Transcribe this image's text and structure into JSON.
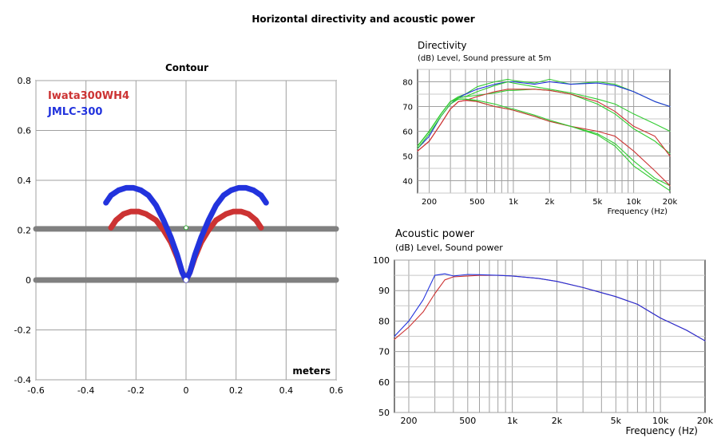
{
  "title": "Horizontal directivity and acoustic power",
  "chart_data": [
    {
      "type": "line",
      "title": "Contour",
      "xlabel": "meters",
      "ylabel": "",
      "xlim": [
        -0.6,
        0.6
      ],
      "ylim": [
        -0.4,
        0.8
      ],
      "xticks": [
        -0.6,
        -0.4,
        -0.2,
        0,
        0.2,
        0.4,
        0.6
      ],
      "xtick_labels": [
        "-0.6",
        "-0.4",
        "-0.2",
        "0",
        "0.2",
        "0.4",
        "0.6"
      ],
      "yticks": [
        -0.4,
        -0.2,
        0,
        0.2,
        0.4,
        0.6,
        0.8
      ],
      "ytick_labels": [
        "-0.4",
        "-0.2",
        "0",
        "0.2",
        "0.4",
        "0.6",
        "0.8"
      ],
      "grid": true,
      "legend": "top-left",
      "series": [
        {
          "name": "Iwata300WH4",
          "color": "#cc3333",
          "x": [
            -0.3,
            -0.28,
            -0.25,
            -0.22,
            -0.19,
            -0.16,
            -0.12,
            -0.09,
            -0.06,
            -0.035,
            -0.015,
            0,
            0.015,
            0.035,
            0.06,
            0.09,
            0.12,
            0.16,
            0.19,
            0.22,
            0.25,
            0.28,
            0.3
          ],
          "y": [
            0.21,
            0.24,
            0.265,
            0.275,
            0.275,
            0.265,
            0.24,
            0.2,
            0.15,
            0.09,
            0.03,
            0,
            0.03,
            0.09,
            0.15,
            0.2,
            0.24,
            0.265,
            0.275,
            0.275,
            0.265,
            0.24,
            0.21
          ]
        },
        {
          "name": "JMLC-300",
          "color": "#2233dd",
          "x": [
            -0.32,
            -0.3,
            -0.27,
            -0.24,
            -0.21,
            -0.18,
            -0.15,
            -0.12,
            -0.09,
            -0.06,
            -0.035,
            -0.015,
            0,
            0.015,
            0.035,
            0.06,
            0.09,
            0.12,
            0.15,
            0.18,
            0.21,
            0.24,
            0.27,
            0.3,
            0.32
          ],
          "y": [
            0.31,
            0.34,
            0.36,
            0.37,
            0.37,
            0.36,
            0.34,
            0.3,
            0.24,
            0.17,
            0.1,
            0.03,
            0,
            0.03,
            0.1,
            0.17,
            0.24,
            0.3,
            0.34,
            0.36,
            0.37,
            0.37,
            0.36,
            0.34,
            0.31
          ]
        },
        {
          "name": "",
          "color": "#808080",
          "x": [
            -0.6,
            0.6
          ],
          "y": [
            0.205,
            0.205
          ]
        },
        {
          "name": "",
          "color": "#808080",
          "x": [
            -0.6,
            0.6
          ],
          "y": [
            0,
            0
          ]
        }
      ]
    },
    {
      "type": "line",
      "title": "Directivity",
      "ylabel": "(dB)  Level, Sound pressure at 5m",
      "xlabel": "Frequency  (Hz)",
      "xscale": "log",
      "xlim": [
        160,
        20000
      ],
      "ylim": [
        35,
        85
      ],
      "xticks": [
        200,
        500,
        1000,
        2000,
        5000,
        10000,
        20000
      ],
      "xtick_labels": [
        "200",
        "500",
        "1k",
        "2k",
        "5k",
        "10k",
        "20k"
      ],
      "yticks": [
        40,
        50,
        60,
        70,
        80
      ],
      "ytick_labels": [
        "40",
        "50",
        "60",
        "70",
        "80"
      ],
      "grid": true,
      "series": [
        {
          "color": "#33cc33",
          "x": [
            160,
            200,
            250,
            300,
            350,
            400,
            500,
            700,
            900,
            1000,
            1500,
            2000,
            3000,
            5000,
            7000,
            10000,
            15000,
            20000
          ],
          "y": [
            54,
            60,
            67,
            72,
            74,
            75,
            78,
            80,
            81,
            80.5,
            79.5,
            81,
            79,
            80,
            79,
            76,
            72,
            70
          ]
        },
        {
          "color": "#2233dd",
          "x": [
            160,
            200,
            250,
            300,
            350,
            400,
            500,
            700,
            900,
            1000,
            1500,
            2000,
            3000,
            5000,
            7000,
            10000,
            15000,
            20000
          ],
          "y": [
            53,
            58,
            66,
            71,
            73.5,
            75,
            77,
            79,
            80,
            80,
            79,
            80,
            79,
            79.5,
            78.5,
            76,
            72,
            70
          ]
        },
        {
          "color": "#33cc33",
          "x": [
            160,
            200,
            250,
            300,
            350,
            400,
            500,
            700,
            900,
            1000,
            1500,
            2000,
            3000,
            5000,
            7000,
            10000,
            15000,
            20000
          ],
          "y": [
            54,
            60,
            67,
            72,
            73.5,
            74,
            76,
            78.5,
            80,
            79.5,
            78,
            77,
            75.5,
            73,
            71,
            67,
            63,
            60
          ]
        },
        {
          "color": "#33cc33",
          "x": [
            160,
            200,
            250,
            300,
            350,
            400,
            500,
            700,
            900,
            1000,
            1500,
            2000,
            3000,
            5000,
            7000,
            10000,
            15000,
            20000
          ],
          "y": [
            54,
            60,
            67,
            72,
            73.5,
            74,
            74.5,
            75.5,
            76.5,
            76.5,
            77,
            76.5,
            75,
            71,
            67,
            61,
            56,
            51
          ]
        },
        {
          "color": "#33cc33",
          "x": [
            160,
            200,
            250,
            300,
            350,
            400,
            500,
            700,
            900,
            1000,
            1500,
            2000,
            3000,
            5000,
            7000,
            10000,
            15000,
            20000
          ],
          "y": [
            54,
            60,
            67,
            72,
            73,
            73,
            72,
            70,
            69,
            68.5,
            66,
            64,
            62,
            59,
            55,
            48,
            41,
            38
          ]
        },
        {
          "color": "#cc3333",
          "x": [
            160,
            200,
            250,
            300,
            350,
            400,
            500,
            700,
            900,
            1000,
            1500,
            2000,
            3000,
            5000,
            7000,
            10000,
            15000,
            20000
          ],
          "y": [
            52,
            56,
            63,
            69,
            72,
            72.5,
            72,
            70,
            69,
            68.5,
            66,
            64,
            62,
            60,
            58,
            52,
            44,
            38
          ]
        },
        {
          "color": "#cc3333",
          "x": [
            160,
            200,
            250,
            300,
            350,
            400,
            500,
            700,
            900,
            1000,
            1500,
            2000,
            3000,
            5000,
            7000,
            10000,
            15000,
            20000
          ],
          "y": [
            52,
            56,
            63,
            69,
            72,
            72.5,
            74,
            76,
            77,
            77,
            77,
            76.5,
            75,
            72,
            68,
            62,
            58,
            50
          ]
        },
        {
          "color": "#33cc33",
          "x": [
            160,
            200,
            250,
            300,
            350,
            400,
            500,
            700,
            900,
            1000,
            1500,
            2000,
            3000,
            5000,
            7000,
            10000,
            15000,
            20000
          ],
          "y": [
            53,
            59,
            66,
            71,
            73,
            73,
            72.5,
            71,
            69.5,
            69,
            66.5,
            64.5,
            62,
            58.5,
            54,
            46,
            40,
            36
          ]
        }
      ]
    },
    {
      "type": "line",
      "title": "Acoustic power",
      "ylabel": "(dB)  Level, Sound power",
      "xlabel": "Frequency  (Hz)",
      "xscale": "log",
      "xlim": [
        160,
        20000
      ],
      "ylim": [
        50,
        100
      ],
      "xticks": [
        200,
        500,
        1000,
        2000,
        5000,
        10000,
        20000
      ],
      "xtick_labels": [
        "200",
        "500",
        "1k",
        "2k",
        "5k",
        "10k",
        "20k"
      ],
      "yticks": [
        50,
        60,
        70,
        80,
        90,
        100
      ],
      "ytick_labels": [
        "50",
        "60",
        "70",
        "80",
        "90",
        "100"
      ],
      "grid": true,
      "series": [
        {
          "color": "#cc3333",
          "x": [
            160,
            200,
            250,
            300,
            350,
            400,
            500,
            600,
            800,
            1000,
            1500,
            2000,
            3000,
            5000,
            7000,
            10000,
            15000,
            20000
          ],
          "y": [
            74,
            78,
            83,
            89,
            93.5,
            94.5,
            94.8,
            95,
            95,
            94.8,
            94,
            93,
            91,
            88,
            85.5,
            81,
            77,
            73.5
          ]
        },
        {
          "color": "#2233dd",
          "x": [
            160,
            200,
            250,
            300,
            350,
            400,
            500,
            600,
            800,
            1000,
            1500,
            2000,
            3000,
            5000,
            7000,
            10000,
            15000,
            20000
          ],
          "y": [
            75,
            80,
            87,
            95,
            95.5,
            94.8,
            95.3,
            95.2,
            95,
            94.8,
            94,
            93,
            91,
            88,
            85.5,
            81,
            77,
            73.5
          ]
        }
      ]
    }
  ]
}
